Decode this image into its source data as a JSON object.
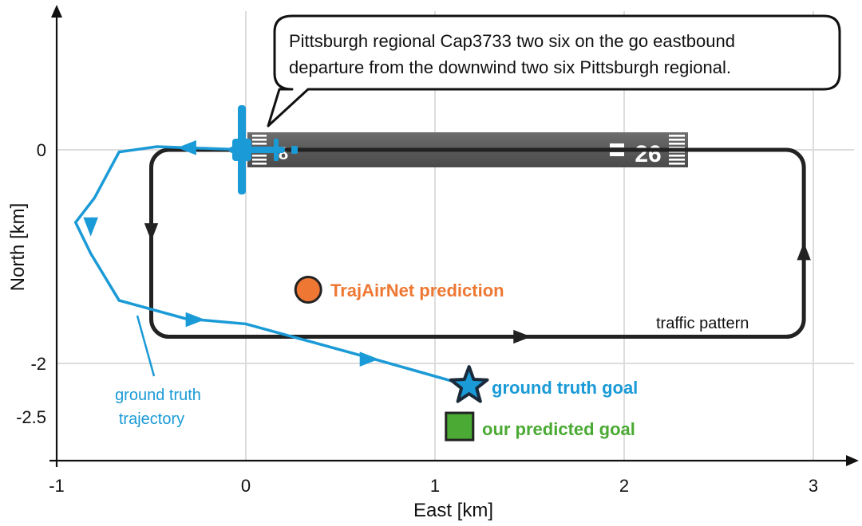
{
  "chart_data": {
    "type": "line",
    "xlabel": "East [km]",
    "ylabel": "North [km]",
    "xlim": [
      -1,
      3.2
    ],
    "ylim": [
      -2.5,
      0.65
    ],
    "xticks": [
      -1,
      0,
      1,
      2,
      3
    ],
    "xtick_labels": [
      "-1",
      "0",
      "1",
      "2",
      "3"
    ],
    "yticks": [
      -2.5,
      -2,
      0
    ],
    "ytick_labels": [
      "-2.5",
      "-2",
      "0"
    ],
    "grid": true,
    "runway": {
      "x0": 0.05,
      "x1": 2.33,
      "y": 0,
      "number_label": "26"
    },
    "speech_bubble": {
      "lines": [
        "Pittsburgh regional Cap3733 two six on the go eastbound",
        "departure from the downwind two six Pittsburgh regional."
      ]
    },
    "series": [
      {
        "key": "pattern",
        "label": "traffic pattern",
        "color": "#222222",
        "points": [
          [
            -0.5,
            0.0
          ],
          [
            -0.5,
            -1.75
          ],
          [
            2.95,
            -1.75
          ],
          [
            2.95,
            0.0
          ],
          [
            -0.5,
            0.0
          ]
        ],
        "arrows": [
          {
            "x": -0.5,
            "y": -0.75,
            "dir": "down"
          },
          {
            "x": 1.45,
            "y": -1.75,
            "dir": "right"
          },
          {
            "x": 2.95,
            "y": -0.97,
            "dir": "up"
          }
        ]
      },
      {
        "key": "truth",
        "label": "ground truth\ntrajectory",
        "label_lines": [
          "ground truth",
          "trajectory"
        ],
        "color": "#1a9ad6",
        "points": [
          [
            0.0,
            0.0
          ],
          [
            -0.47,
            0.03
          ],
          [
            -0.67,
            -0.02
          ],
          [
            -0.8,
            -0.45
          ],
          [
            -0.9,
            -0.68
          ],
          [
            -0.82,
            -0.97
          ],
          [
            -0.67,
            -1.41
          ],
          [
            -0.32,
            -1.58
          ],
          [
            0.0,
            -1.63
          ],
          [
            0.72,
            -1.98
          ],
          [
            1.18,
            -2.21
          ]
        ],
        "arrows": [
          {
            "x": -0.3,
            "y": 0.02,
            "dir": "left"
          },
          {
            "x": -0.82,
            "y": -0.7,
            "dir": "down"
          },
          {
            "x": -0.28,
            "y": -1.59,
            "dir": "right"
          },
          {
            "x": 0.64,
            "y": -1.96,
            "dir": "right"
          }
        ]
      }
    ],
    "markers": [
      {
        "key": "trajairnet",
        "label": "TrajAirNet prediction",
        "x": 0.33,
        "y": -1.31,
        "shape": "circle",
        "color": "#ee7733"
      },
      {
        "key": "truth_goal",
        "label": "ground truth goal",
        "x": 1.18,
        "y": -2.21,
        "shape": "star",
        "color": "#1a9ad6"
      },
      {
        "key": "pred_goal",
        "label": "our predicted goal",
        "x": 1.13,
        "y": -2.59,
        "shape": "square",
        "color": "#4aaa33"
      }
    ],
    "colors": {
      "pattern": "#222222",
      "truth": "#1a9ad6",
      "trajairnet": "#ee7733",
      "pred_goal": "#4aaa33"
    }
  }
}
